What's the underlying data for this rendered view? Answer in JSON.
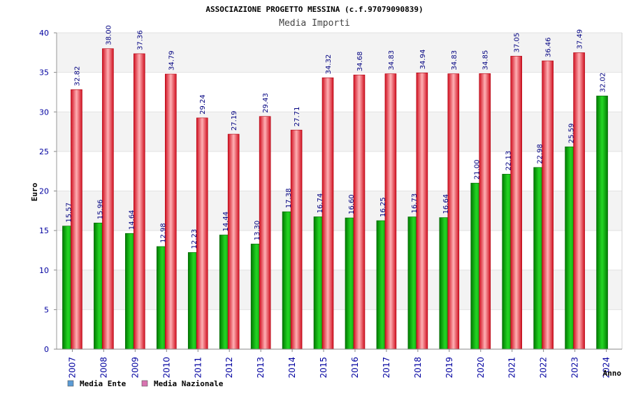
{
  "chart_data": {
    "type": "bar",
    "title": "ASSOCIAZIONE PROGETTO MESSINA (c.f.97079090839)",
    "subtitle": "Media Importi",
    "ylabel": "Euro",
    "xlabel": "Anno",
    "ylim": [
      0,
      40
    ],
    "yticks": [
      0,
      5,
      10,
      15,
      20,
      25,
      30,
      35,
      40
    ],
    "grid": true,
    "legend_position": "bottom-left",
    "categories": [
      "2007",
      "2008",
      "2009",
      "2010",
      "2011",
      "2012",
      "2013",
      "2014",
      "2015",
      "2016",
      "2017",
      "2018",
      "2019",
      "2020",
      "2021",
      "2022",
      "2023",
      "2024"
    ],
    "series": [
      {
        "name": "Media Ente",
        "color": "#00b000",
        "legend_color": "#5b9bd5",
        "values": [
          15.57,
          15.96,
          14.64,
          12.98,
          12.23,
          14.44,
          13.3,
          17.38,
          16.74,
          16.6,
          16.25,
          16.73,
          16.64,
          21.0,
          22.13,
          22.98,
          25.59,
          32.02
        ],
        "labels": [
          "15.57",
          "15.96",
          "14.64",
          "12.98",
          "12.23",
          "14.44",
          "13.30",
          "17.38",
          "16.74",
          "16.60",
          "16.25",
          "16.73",
          "16.64",
          "21.00",
          "22.13",
          "22.98",
          "25.59",
          "32.02"
        ]
      },
      {
        "name": "Media Nazionale",
        "color": "#e8202a",
        "legend_color": "#d873b0",
        "values": [
          32.82,
          38.0,
          37.36,
          34.79,
          29.24,
          27.19,
          29.43,
          27.71,
          34.32,
          34.68,
          34.83,
          34.94,
          34.83,
          34.85,
          37.05,
          36.46,
          37.49,
          null
        ],
        "labels": [
          "32.82",
          "38.00",
          "37.36",
          "34.79",
          "29.24",
          "27.19",
          "29.43",
          "27.71",
          "34.32",
          "34.68",
          "34.83",
          "34.94",
          "34.83",
          "34.85",
          "37.05",
          "36.46",
          "37.49",
          ""
        ]
      }
    ]
  }
}
